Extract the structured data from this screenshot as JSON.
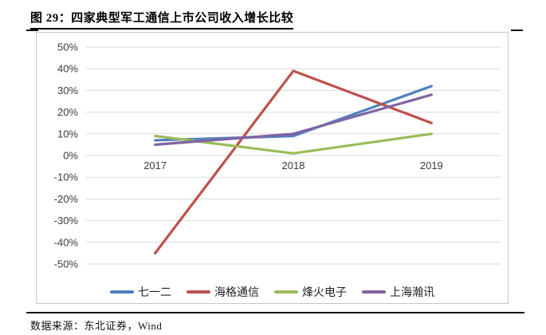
{
  "figure": {
    "title": "图  29：四家典型军工通信上市公司收入增长比较"
  },
  "source": {
    "text": "数据来源：东北证券，Wind"
  },
  "chart_data": {
    "type": "line",
    "title": "四家典型军工通信上市公司收入增长比较",
    "categories": [
      "2017",
      "2018",
      "2019"
    ],
    "series": [
      {
        "name": "七一二",
        "color": "#4F81BD",
        "values": [
          7,
          9,
          32
        ]
      },
      {
        "name": "海格通信",
        "color": "#C0504D",
        "values": [
          -45,
          39,
          15
        ]
      },
      {
        "name": "烽火电子",
        "color": "#9BBB59",
        "values": [
          9,
          1,
          10
        ]
      },
      {
        "name": "上海瀚讯",
        "color": "#8064A2",
        "values": [
          5,
          10,
          28
        ]
      }
    ],
    "ylim": [
      -50,
      50
    ],
    "ytick_step": 10,
    "yticks": [
      "50%",
      "40%",
      "30%",
      "20%",
      "10%",
      "0%",
      "-10%",
      "-20%",
      "-30%",
      "-40%",
      "-50%"
    ],
    "ytick_format": "percent",
    "xlabel": "",
    "ylabel": "",
    "grid": "horizontal",
    "grid_color": "#D9D9D9",
    "legend_position": "bottom"
  }
}
